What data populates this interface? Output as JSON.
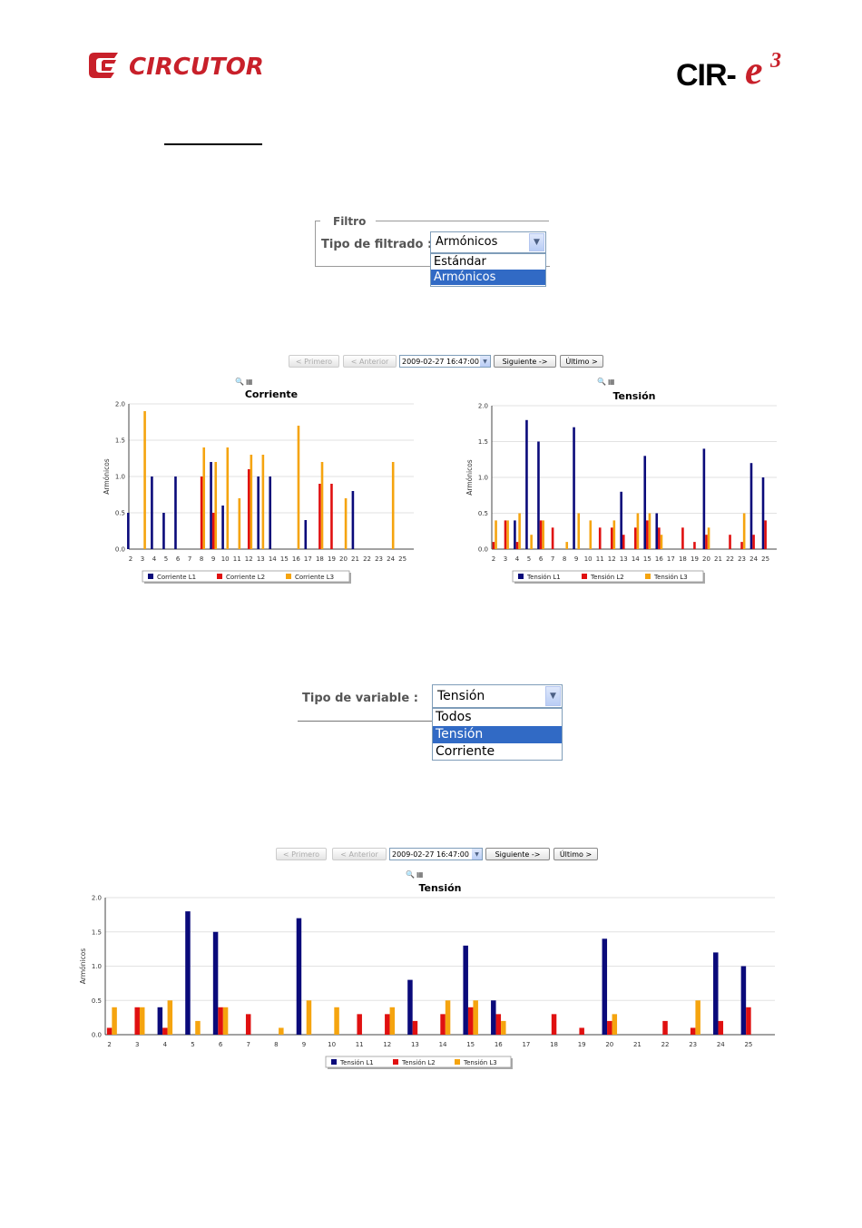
{
  "header": {
    "brand_left": "CIRCUTOR",
    "brand_right_prefix": "CIR-",
    "brand_right_e": "e",
    "brand_right_sup": "3"
  },
  "filter": {
    "legend": "Filtro",
    "label": "Tipo de filtrado :",
    "selected": "Armónicos",
    "options": [
      "Estándar",
      "Armónicos"
    ]
  },
  "variable": {
    "label": "Tipo de variable :",
    "selected": "Tensión",
    "options": [
      "Todos",
      "Tensión",
      "Corriente"
    ]
  },
  "nav": {
    "first": "< Primero",
    "prev": "< Anterior",
    "date": "2009-02-27 16:47:00",
    "next": "Siguiente ->",
    "last": "Último >"
  },
  "colors": {
    "L1": "#0a0a7a",
    "L2": "#e01010",
    "L3": "#f5a40f"
  },
  "chart_data": [
    {
      "type": "bar",
      "title": "Corriente",
      "ylabel": "Armónicos",
      "ylim": [
        0,
        2.0
      ],
      "yticks": [
        "0.0",
        "0.5",
        "1.0",
        "1.5",
        "2.0"
      ],
      "categories": [
        "2",
        "3",
        "4",
        "5",
        "6",
        "7",
        "8",
        "9",
        "10",
        "11",
        "12",
        "13",
        "14",
        "15",
        "16",
        "17",
        "18",
        "19",
        "20",
        "21",
        "22",
        "23",
        "24",
        "25"
      ],
      "series": [
        {
          "name": "Corriente L1",
          "values": [
            0.5,
            0,
            1.0,
            0.5,
            1.0,
            0,
            0,
            1.2,
            0.6,
            0,
            0,
            1.0,
            1.0,
            0,
            0,
            0.4,
            0,
            0,
            0,
            0.8,
            0,
            0,
            0,
            0
          ]
        },
        {
          "name": "Corriente L2",
          "values": [
            0,
            0,
            0,
            0,
            0,
            0,
            1.0,
            0.5,
            0,
            0,
            1.1,
            0,
            0,
            0,
            0,
            0,
            0.9,
            0.9,
            0,
            0,
            0,
            0,
            0,
            0
          ]
        },
        {
          "name": "Corriente L3",
          "values": [
            0,
            1.9,
            0,
            0,
            0,
            0,
            1.4,
            1.2,
            1.4,
            0.7,
            1.3,
            1.3,
            0,
            0,
            1.7,
            0,
            1.2,
            0,
            0.7,
            0,
            0,
            0,
            1.2,
            0
          ]
        }
      ],
      "legend": "bottom"
    },
    {
      "type": "bar",
      "title": "Tensión",
      "ylabel": "Armónicos",
      "ylim": [
        0,
        2.0
      ],
      "yticks": [
        "0.0",
        "0.5",
        "1.0",
        "1.5",
        "2.0"
      ],
      "categories": [
        "2",
        "3",
        "4",
        "5",
        "6",
        "7",
        "8",
        "9",
        "10",
        "11",
        "12",
        "13",
        "14",
        "15",
        "16",
        "17",
        "18",
        "19",
        "20",
        "21",
        "22",
        "23",
        "24",
        "25"
      ],
      "series": [
        {
          "name": "Tensión L1",
          "values": [
            0,
            0,
            0.4,
            1.8,
            1.5,
            0,
            0,
            1.7,
            0,
            0,
            0,
            0.8,
            0,
            1.3,
            0.5,
            0,
            0,
            0,
            1.4,
            0,
            0,
            0,
            1.2,
            1.0
          ]
        },
        {
          "name": "Tensión L2",
          "values": [
            0.1,
            0.4,
            0.1,
            0,
            0.4,
            0.3,
            0,
            0,
            0,
            0.3,
            0.3,
            0.2,
            0.3,
            0.4,
            0.3,
            0,
            0.3,
            0.1,
            0.2,
            0,
            0.2,
            0.1,
            0.2,
            0.4
          ]
        },
        {
          "name": "Tensión L3",
          "values": [
            0.4,
            0.4,
            0.5,
            0.2,
            0.4,
            0,
            0.1,
            0.5,
            0.4,
            0,
            0.4,
            0,
            0.5,
            0.5,
            0.2,
            0,
            0,
            0,
            0.3,
            0,
            0,
            0.5,
            0,
            0
          ]
        }
      ],
      "legend": "bottom"
    },
    {
      "type": "bar",
      "title": "Tensión",
      "ylabel": "Armónicos",
      "ylim": [
        0,
        2.0
      ],
      "yticks": [
        "0.0",
        "0.5",
        "1.0",
        "1.5",
        "2.0"
      ],
      "categories": [
        "2",
        "3",
        "4",
        "5",
        "6",
        "7",
        "8",
        "9",
        "10",
        "11",
        "12",
        "13",
        "14",
        "15",
        "16",
        "17",
        "18",
        "19",
        "20",
        "21",
        "22",
        "23",
        "24",
        "25"
      ],
      "series": [
        {
          "name": "Tensión L1",
          "values": [
            0,
            0,
            0.4,
            1.8,
            1.5,
            0,
            0,
            1.7,
            0,
            0,
            0,
            0.8,
            0,
            1.3,
            0.5,
            0,
            0,
            0,
            1.4,
            0,
            0,
            0,
            1.2,
            1.0
          ]
        },
        {
          "name": "Tensión L2",
          "values": [
            0.1,
            0.4,
            0.1,
            0,
            0.4,
            0.3,
            0,
            0,
            0,
            0.3,
            0.3,
            0.2,
            0.3,
            0.4,
            0.3,
            0,
            0.3,
            0.1,
            0.2,
            0,
            0.2,
            0.1,
            0.2,
            0.4
          ]
        },
        {
          "name": "Tensión L3",
          "values": [
            0.4,
            0.4,
            0.5,
            0.2,
            0.4,
            0,
            0.1,
            0.5,
            0.4,
            0,
            0.4,
            0,
            0.5,
            0.5,
            0.2,
            0,
            0,
            0,
            0.3,
            0,
            0,
            0.5,
            0,
            0
          ]
        }
      ],
      "legend": "bottom"
    }
  ]
}
